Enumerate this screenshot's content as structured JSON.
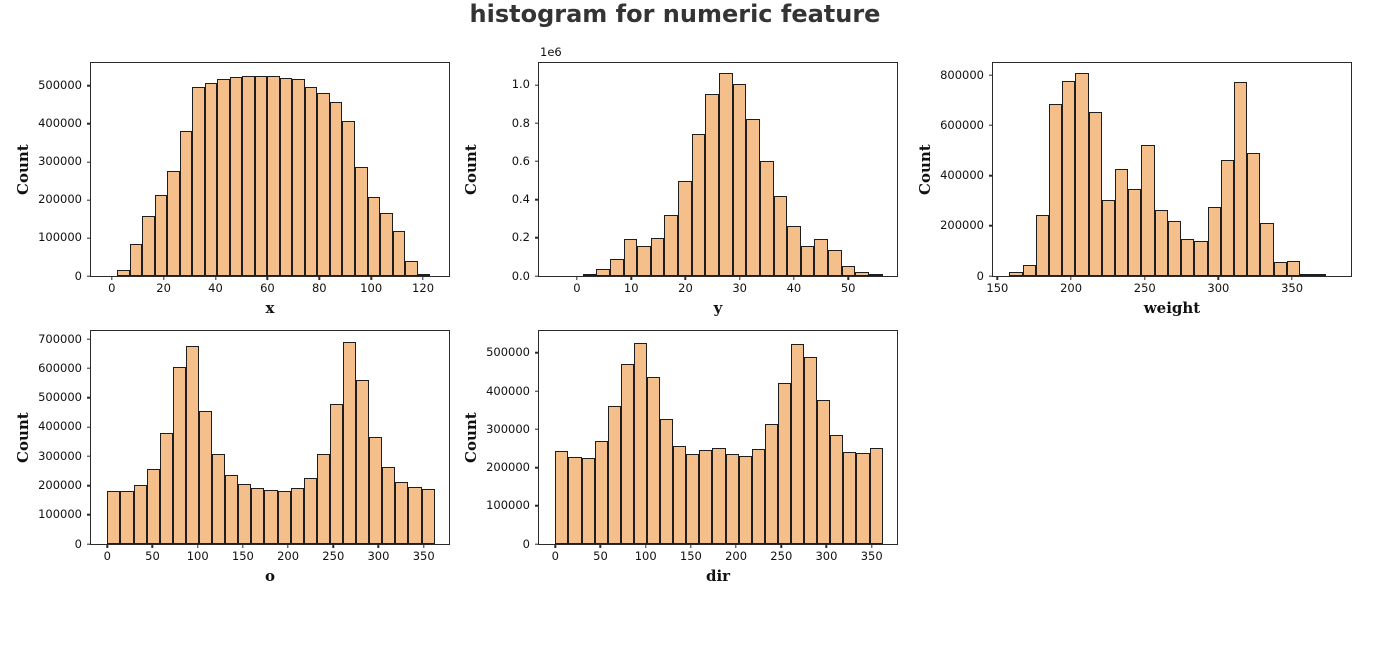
{
  "title": "histogram for numeric feature",
  "colors": {
    "bar_fill": "#f5bf8b",
    "bar_edge": "#1e1e1e",
    "axis": "#2b2b2b",
    "title_text": "#343434"
  },
  "chart_data": [
    {
      "type": "bar",
      "subtype": "histogram",
      "xlabel": "x",
      "ylabel": "Count",
      "bin_start": 2,
      "bin_width": 4.8,
      "values": [
        15000,
        85000,
        157000,
        213000,
        275000,
        382000,
        497000,
        507000,
        519000,
        522000,
        525000,
        527000,
        526000,
        521000,
        517000,
        498000,
        481000,
        458000,
        407000,
        287000,
        208000,
        165000,
        118000,
        40000,
        6000
      ],
      "xlim": [
        -8,
        130
      ],
      "ylim": [
        0,
        560000
      ],
      "xtick_values": [
        0,
        20,
        40,
        60,
        80,
        100,
        120
      ],
      "xtick_labels": [
        "0",
        "20",
        "40",
        "60",
        "80",
        "100",
        "120"
      ],
      "ytick_values": [
        0,
        100000,
        200000,
        300000,
        400000,
        500000
      ],
      "ytick_labels": [
        "0",
        "100000",
        "200000",
        "300000",
        "400000",
        "500000"
      ],
      "offset_text": "",
      "grid": false,
      "legend": null
    },
    {
      "type": "bar",
      "subtype": "histogram",
      "xlabel": "y",
      "ylabel": "Count",
      "bin_start": 1,
      "bin_width": 2.5,
      "values": [
        12000,
        35000,
        90000,
        195000,
        155000,
        200000,
        320000,
        495000,
        745000,
        955000,
        1065000,
        1005000,
        820000,
        600000,
        420000,
        260000,
        155000,
        195000,
        135000,
        50000,
        20000,
        5000
      ],
      "xlim": [
        -7,
        59
      ],
      "ylim": [
        0,
        1115000
      ],
      "xtick_values": [
        0,
        10,
        20,
        30,
        40,
        50
      ],
      "xtick_labels": [
        "0",
        "10",
        "20",
        "30",
        "40",
        "50"
      ],
      "ytick_values": [
        0,
        200000,
        400000,
        600000,
        800000,
        1000000
      ],
      "ytick_labels": [
        "0.0",
        "0.2",
        "0.4",
        "0.6",
        "0.8",
        "1.0"
      ],
      "offset_text": "1e6",
      "grid": false,
      "legend": null
    },
    {
      "type": "bar",
      "subtype": "histogram",
      "xlabel": "weight",
      "ylabel": "Count",
      "bin_start": 158,
      "bin_width": 8.92,
      "values": [
        15000,
        45000,
        243000,
        685000,
        775000,
        808000,
        652000,
        303000,
        427000,
        348000,
        523000,
        262000,
        220000,
        147000,
        138000,
        275000,
        462000,
        772000,
        490000,
        210000,
        55000,
        60000,
        5000,
        3000
      ],
      "xlim": [
        147,
        390
      ],
      "ylim": [
        0,
        848000
      ],
      "xtick_values": [
        150,
        200,
        250,
        300,
        350
      ],
      "xtick_labels": [
        "150",
        "200",
        "250",
        "300",
        "350"
      ],
      "ytick_values": [
        0,
        200000,
        400000,
        600000,
        800000
      ],
      "ytick_labels": [
        "0",
        "200000",
        "400000",
        "600000",
        "800000"
      ],
      "offset_text": "",
      "grid": false,
      "legend": null
    },
    {
      "type": "bar",
      "subtype": "histogram",
      "xlabel": "o",
      "ylabel": "Count",
      "bin_start": 0,
      "bin_width": 14.4,
      "values": [
        182000,
        180000,
        202000,
        255000,
        381000,
        605000,
        678000,
        456000,
        307000,
        236000,
        205000,
        192000,
        186000,
        181000,
        190000,
        226000,
        308000,
        478000,
        690000,
        562000,
        365000,
        262000,
        213000,
        195000,
        188000
      ],
      "xlim": [
        -18,
        378
      ],
      "ylim": [
        0,
        728000
      ],
      "xtick_values": [
        0,
        50,
        100,
        150,
        200,
        250,
        300,
        350
      ],
      "xtick_labels": [
        "0",
        "50",
        "100",
        "150",
        "200",
        "250",
        "300",
        "350"
      ],
      "ytick_values": [
        0,
        100000,
        200000,
        300000,
        400000,
        500000,
        600000,
        700000
      ],
      "ytick_labels": [
        "0",
        "100000",
        "200000",
        "300000",
        "400000",
        "500000",
        "600000",
        "700000"
      ],
      "offset_text": "",
      "grid": false,
      "legend": null
    },
    {
      "type": "bar",
      "subtype": "histogram",
      "xlabel": "dir",
      "ylabel": "Count",
      "bin_start": 0,
      "bin_width": 14.4,
      "values": [
        242000,
        227000,
        226000,
        270000,
        361000,
        470000,
        526000,
        438000,
        326000,
        257000,
        236000,
        245000,
        251000,
        235000,
        230000,
        249000,
        313000,
        420000,
        522000,
        488000,
        376000,
        285000,
        240000,
        237000,
        250000
      ],
      "xlim": [
        -18,
        378
      ],
      "ylim": [
        0,
        557000
      ],
      "xtick_values": [
        0,
        50,
        100,
        150,
        200,
        250,
        300,
        350
      ],
      "xtick_labels": [
        "0",
        "50",
        "100",
        "150",
        "200",
        "250",
        "300",
        "350"
      ],
      "ytick_values": [
        0,
        100000,
        200000,
        300000,
        400000,
        500000
      ],
      "ytick_labels": [
        "0",
        "100000",
        "200000",
        "300000",
        "400000",
        "500000"
      ],
      "offset_text": "",
      "grid": false,
      "legend": null
    }
  ]
}
